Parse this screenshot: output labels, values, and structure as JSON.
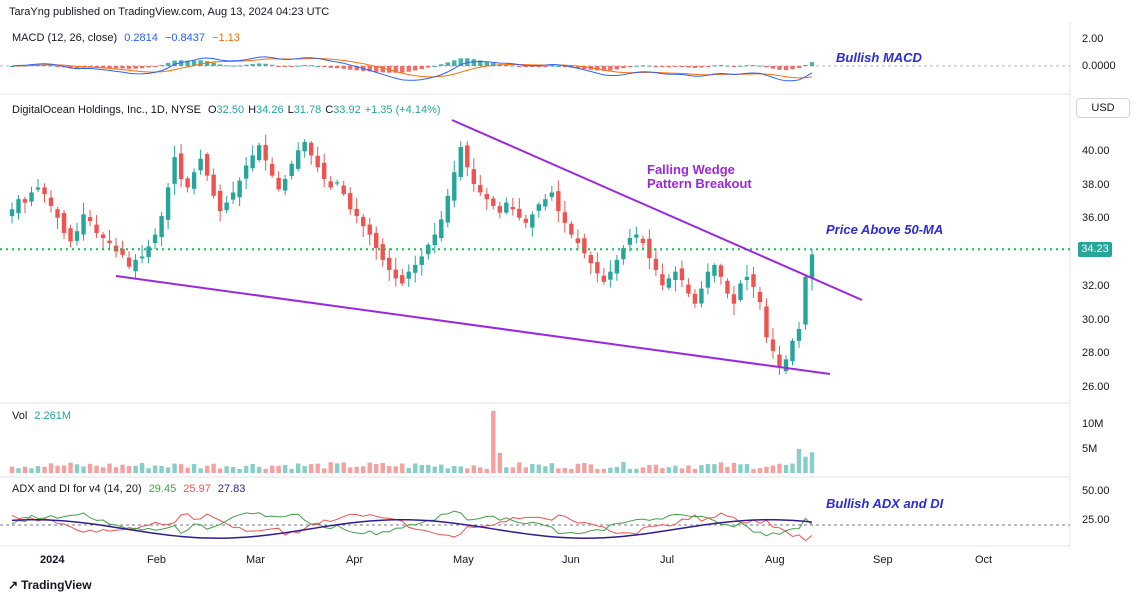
{
  "header": {
    "published": "TaraYng published on TradingView.com, Aug 13, 2024 04:23 UTC"
  },
  "macd": {
    "title": "MACD (12, 26, close)",
    "v1": "0.2814",
    "v2": "−0.8437",
    "v3": "−1.13",
    "axis": [
      "2.00",
      "0.0000"
    ],
    "annotation": "Bullish MACD"
  },
  "price": {
    "title": "DigitalOcean Holdings, Inc., 1D, NYSE",
    "o_label": "O",
    "o": "32.50",
    "h_label": "H",
    "h": "34.26",
    "l_label": "L",
    "l": "31.78",
    "c_label": "C",
    "c": "33.92",
    "change": "+1.35 (+4.14%)",
    "currency": "USD",
    "last_price_tag": "34.23",
    "annotation_wedge_1": "Falling Wedge",
    "annotation_wedge_2": "Pattern Breakout",
    "annotation_ma": "Price Above 50-MA"
  },
  "volume": {
    "title": "Vol",
    "value": "2.261M",
    "axis": [
      "10M",
      "5M"
    ]
  },
  "adx": {
    "title": "ADX and DI for v4 (14, 20)",
    "v1": "29.45",
    "v2": "25.97",
    "v3": "27.83",
    "axis": [
      "50.00",
      "25.00"
    ],
    "annotation": "Bullish ADX and DI"
  },
  "x_axis": [
    "2024",
    "Feb",
    "Mar",
    "Apr",
    "May",
    "Jun",
    "Jul",
    "Aug",
    "Sep",
    "Oct"
  ],
  "footer": {
    "brand": "TradingView"
  },
  "colors": {
    "up": "#26a69a",
    "down": "#ef5350",
    "wedge": "#9c27e0",
    "ma_dotted": "#00c853",
    "annotation": "#2a2adf",
    "macd_line": "#2962ff",
    "signal_line": "#ff6d00",
    "di_plus": "#43a047",
    "di_minus": "#ef5350",
    "adx_line": "#311b92"
  },
  "chart_data": [
    {
      "type": "line",
      "title": "MACD (12, 26, close)",
      "y_ticks": [
        2.0,
        0.0
      ],
      "series": [
        {
          "name": "MACD",
          "last": 0.2814
        },
        {
          "name": "Signal",
          "last": -0.8437
        },
        {
          "name": "Histogram",
          "last": -1.13
        }
      ]
    },
    {
      "type": "candlestick",
      "title": "DigitalOcean Holdings, Inc., 1D, NYSE",
      "ylim": [
        25,
        42
      ],
      "y_ticks": [
        26.0,
        28.0,
        30.0,
        32.0,
        34.0,
        36.0,
        38.0,
        40.0
      ],
      "x_ticks": [
        "2024",
        "Feb",
        "Mar",
        "Apr",
        "May",
        "Jun",
        "Jul",
        "Aug",
        "Sep",
        "Oct"
      ],
      "last": {
        "open": 32.5,
        "high": 34.26,
        "low": 31.78,
        "close": 33.92,
        "change": 1.35,
        "change_pct": 4.14
      },
      "ma50_level": 34.23,
      "closes": [
        36.6,
        37.2,
        37.0,
        37.6,
        37.9,
        37.5,
        36.8,
        36.1,
        35.2,
        34.7,
        35.3,
        36.3,
        35.9,
        35.2,
        34.9,
        34.6,
        34.1,
        33.9,
        33.2,
        33.6,
        33.8,
        34.4,
        35.1,
        36.2,
        37.9,
        39.7,
        38.4,
        37.9,
        38.8,
        39.6,
        38.6,
        37.4,
        36.5,
        37.0,
        37.6,
        38.3,
        39.2,
        39.8,
        40.4,
        39.5,
        38.6,
        37.8,
        38.4,
        39.3,
        40.1,
        40.6,
        39.8,
        39.1,
        38.4,
        37.9,
        38.2,
        37.5,
        36.6,
        36.2,
        35.6,
        35.1,
        34.3,
        33.6,
        33.0,
        32.5,
        32.2,
        32.9,
        33.3,
        33.8,
        34.5,
        35.1,
        36.0,
        37.4,
        38.8,
        40.3,
        39.1,
        38.1,
        37.6,
        37.2,
        36.8,
        36.4,
        37.0,
        36.6,
        36.1,
        35.8,
        36.3,
        36.9,
        37.2,
        37.6,
        36.5,
        35.8,
        35.1,
        34.6,
        34.0,
        33.4,
        32.8,
        32.3,
        32.9,
        33.6,
        34.3,
        34.9,
        35.1,
        34.6,
        33.7,
        33.0,
        32.1,
        32.5,
        32.9,
        32.4,
        31.6,
        31.0,
        31.9,
        32.9,
        33.3,
        32.6,
        31.6,
        31.0,
        32.2,
        32.6,
        32.0,
        31.1,
        29.0,
        28.2,
        27.3,
        27.7,
        28.8,
        29.5,
        32.6,
        33.92
      ]
    },
    {
      "type": "bar",
      "title": "Vol",
      "y_ticks": [
        "10M",
        "5M"
      ],
      "last": "2.261M"
    },
    {
      "type": "line",
      "title": "ADX and DI for v4 (14, 20)",
      "y_ticks": [
        50.0,
        25.0
      ],
      "series": [
        {
          "name": "+DI",
          "last": 29.45
        },
        {
          "name": "-DI",
          "last": 25.97
        },
        {
          "name": "ADX",
          "last": 27.83
        }
      ]
    }
  ]
}
